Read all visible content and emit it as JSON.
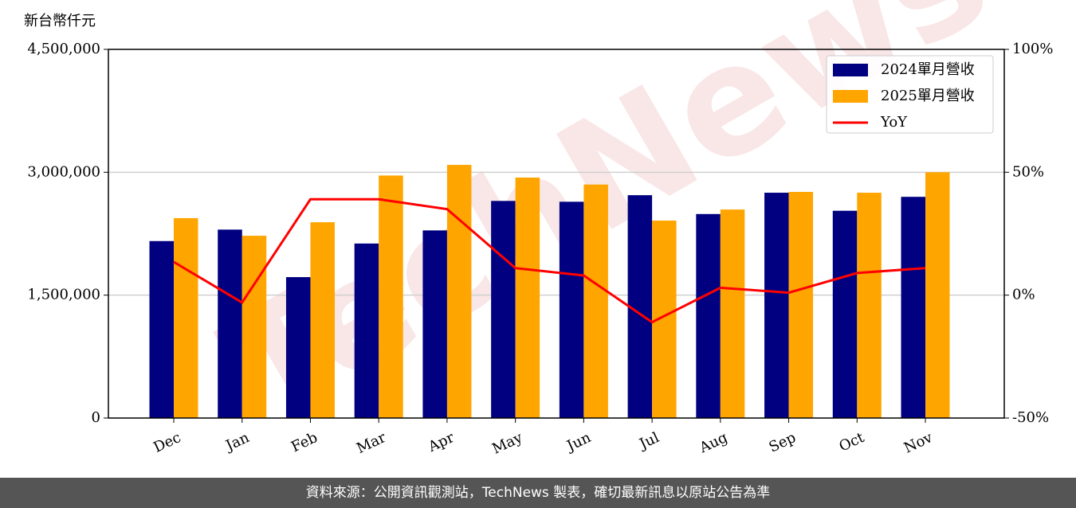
{
  "chart_data": {
    "type": "bar_line",
    "y_label": "新台幣仟元",
    "watermark": "TechNews",
    "footer": "資料來源：公開資訊觀測站，TechNews 製表，確切最新訊息以原站公告為準",
    "categories": [
      "Dec",
      "Jan",
      "Feb",
      "Mar",
      "Apr",
      "May",
      "Jun",
      "Jul",
      "Aug",
      "Sep",
      "Oct",
      "Nov"
    ],
    "series": [
      {
        "name": "2024單月營收",
        "color": "#000080",
        "type": "bar",
        "values": [
          2160000,
          2300000,
          1720000,
          2130000,
          2290000,
          2650000,
          2640000,
          2720000,
          2490000,
          2750000,
          2530000,
          2700000
        ]
      },
      {
        "name": "2025單月營收",
        "color": "#ffa500",
        "type": "bar",
        "values": [
          2440000,
          2225000,
          2390000,
          2960000,
          3090000,
          2935000,
          2850000,
          2410000,
          2545000,
          2760000,
          2750000,
          3000000
        ]
      },
      {
        "name": "YoY",
        "color": "#ff0000",
        "type": "line",
        "axis": "y2",
        "values": [
          13.5,
          -3,
          39,
          39,
          35,
          11,
          8,
          -11,
          3,
          1,
          9,
          11
        ]
      }
    ],
    "ylim": [
      0,
      4500000
    ],
    "yticks": [
      0,
      {
        "value": 1500000,
        "label": "1,500,000"
      },
      {
        "value": 3000000,
        "label": "3,000,000"
      },
      {
        "value": 4500000,
        "label": "4,500,000"
      }
    ],
    "y2lim": [
      -50,
      100
    ],
    "y2ticks": [
      {
        "value": -50,
        "label": "-50%"
      },
      {
        "value": 0,
        "label": "0%"
      },
      {
        "value": 50,
        "label": "50%"
      },
      {
        "value": 100,
        "label": "100%"
      }
    ],
    "grid": true,
    "legend": "upper right"
  }
}
